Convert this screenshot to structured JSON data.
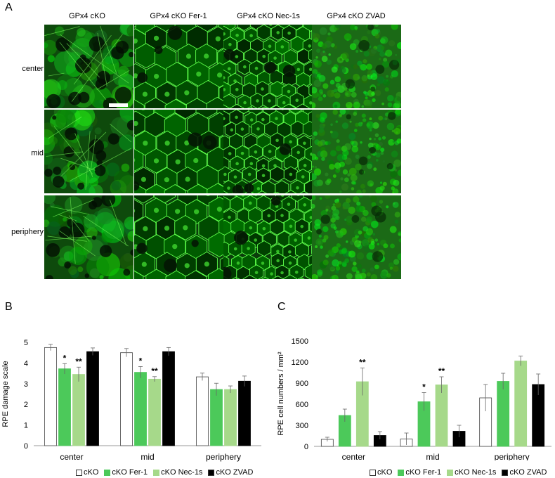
{
  "panel_a": {
    "letter": "A",
    "columns": [
      "GPx4 cKO",
      "GPx4 cKO Fer-1",
      "GPx4 cKO Nec-1s",
      "GPx4 cKO ZVAD"
    ],
    "rows": [
      "center",
      "mid",
      "periphery"
    ]
  },
  "panel_b": {
    "letter": "B"
  },
  "panel_c": {
    "letter": "C"
  },
  "colors": {
    "cKO": "#ffffff",
    "cKO Fer-1": "#4cc95a",
    "cKO Nec-1s": "#a6d98a",
    "cKO ZVAD": "#000000"
  },
  "chart_data": [
    {
      "type": "bar",
      "categories": [
        "center",
        "mid",
        "periphery"
      ],
      "ylabel": "RPE damage scale",
      "ylim": [
        0,
        5
      ],
      "yticks": [
        0,
        1,
        2,
        3,
        4,
        5
      ],
      "series": [
        {
          "name": "cKO",
          "values": [
            4.75,
            4.5,
            3.33
          ],
          "errors": [
            0.15,
            0.2,
            0.18
          ]
        },
        {
          "name": "cKO Fer-1",
          "values": [
            3.72,
            3.55,
            2.72
          ],
          "errors": [
            0.25,
            0.28,
            0.3
          ]
        },
        {
          "name": "cKO Nec-1s",
          "values": [
            3.45,
            3.22,
            2.72
          ],
          "errors": [
            0.35,
            0.12,
            0.17
          ]
        },
        {
          "name": "cKO ZVAD",
          "values": [
            4.55,
            4.55,
            3.12
          ],
          "errors": [
            0.18,
            0.2,
            0.25
          ]
        }
      ],
      "annotations": [
        {
          "series": 1,
          "category": 0,
          "text": "*"
        },
        {
          "series": 2,
          "category": 0,
          "text": "**"
        },
        {
          "series": 1,
          "category": 1,
          "text": "*"
        },
        {
          "series": 2,
          "category": 1,
          "text": "**"
        }
      ],
      "legend_position": "bottom",
      "grid": false
    },
    {
      "type": "bar",
      "categories": [
        "center",
        "mid",
        "periphery"
      ],
      "ylabel": "RPE cell numbers / mm²",
      "ylim": [
        0,
        1500
      ],
      "yticks": [
        0,
        300,
        600,
        900,
        1200,
        1500
      ],
      "series": [
        {
          "name": "cKO",
          "values": [
            100,
            105,
            690
          ],
          "errors": [
            30,
            85,
            190
          ]
        },
        {
          "name": "cKO Fer-1",
          "values": [
            440,
            635,
            925
          ],
          "errors": [
            90,
            130,
            115
          ]
        },
        {
          "name": "cKO Nec-1s",
          "values": [
            920,
            875,
            1215
          ],
          "errors": [
            195,
            115,
            70
          ]
        },
        {
          "name": "cKO ZVAD",
          "values": [
            155,
            215,
            880
          ],
          "errors": [
            55,
            85,
            150
          ]
        }
      ],
      "annotations": [
        {
          "series": 2,
          "category": 0,
          "text": "**"
        },
        {
          "series": 1,
          "category": 1,
          "text": "*"
        },
        {
          "series": 2,
          "category": 1,
          "text": "**"
        }
      ],
      "legend_position": "bottom",
      "grid": false
    }
  ]
}
